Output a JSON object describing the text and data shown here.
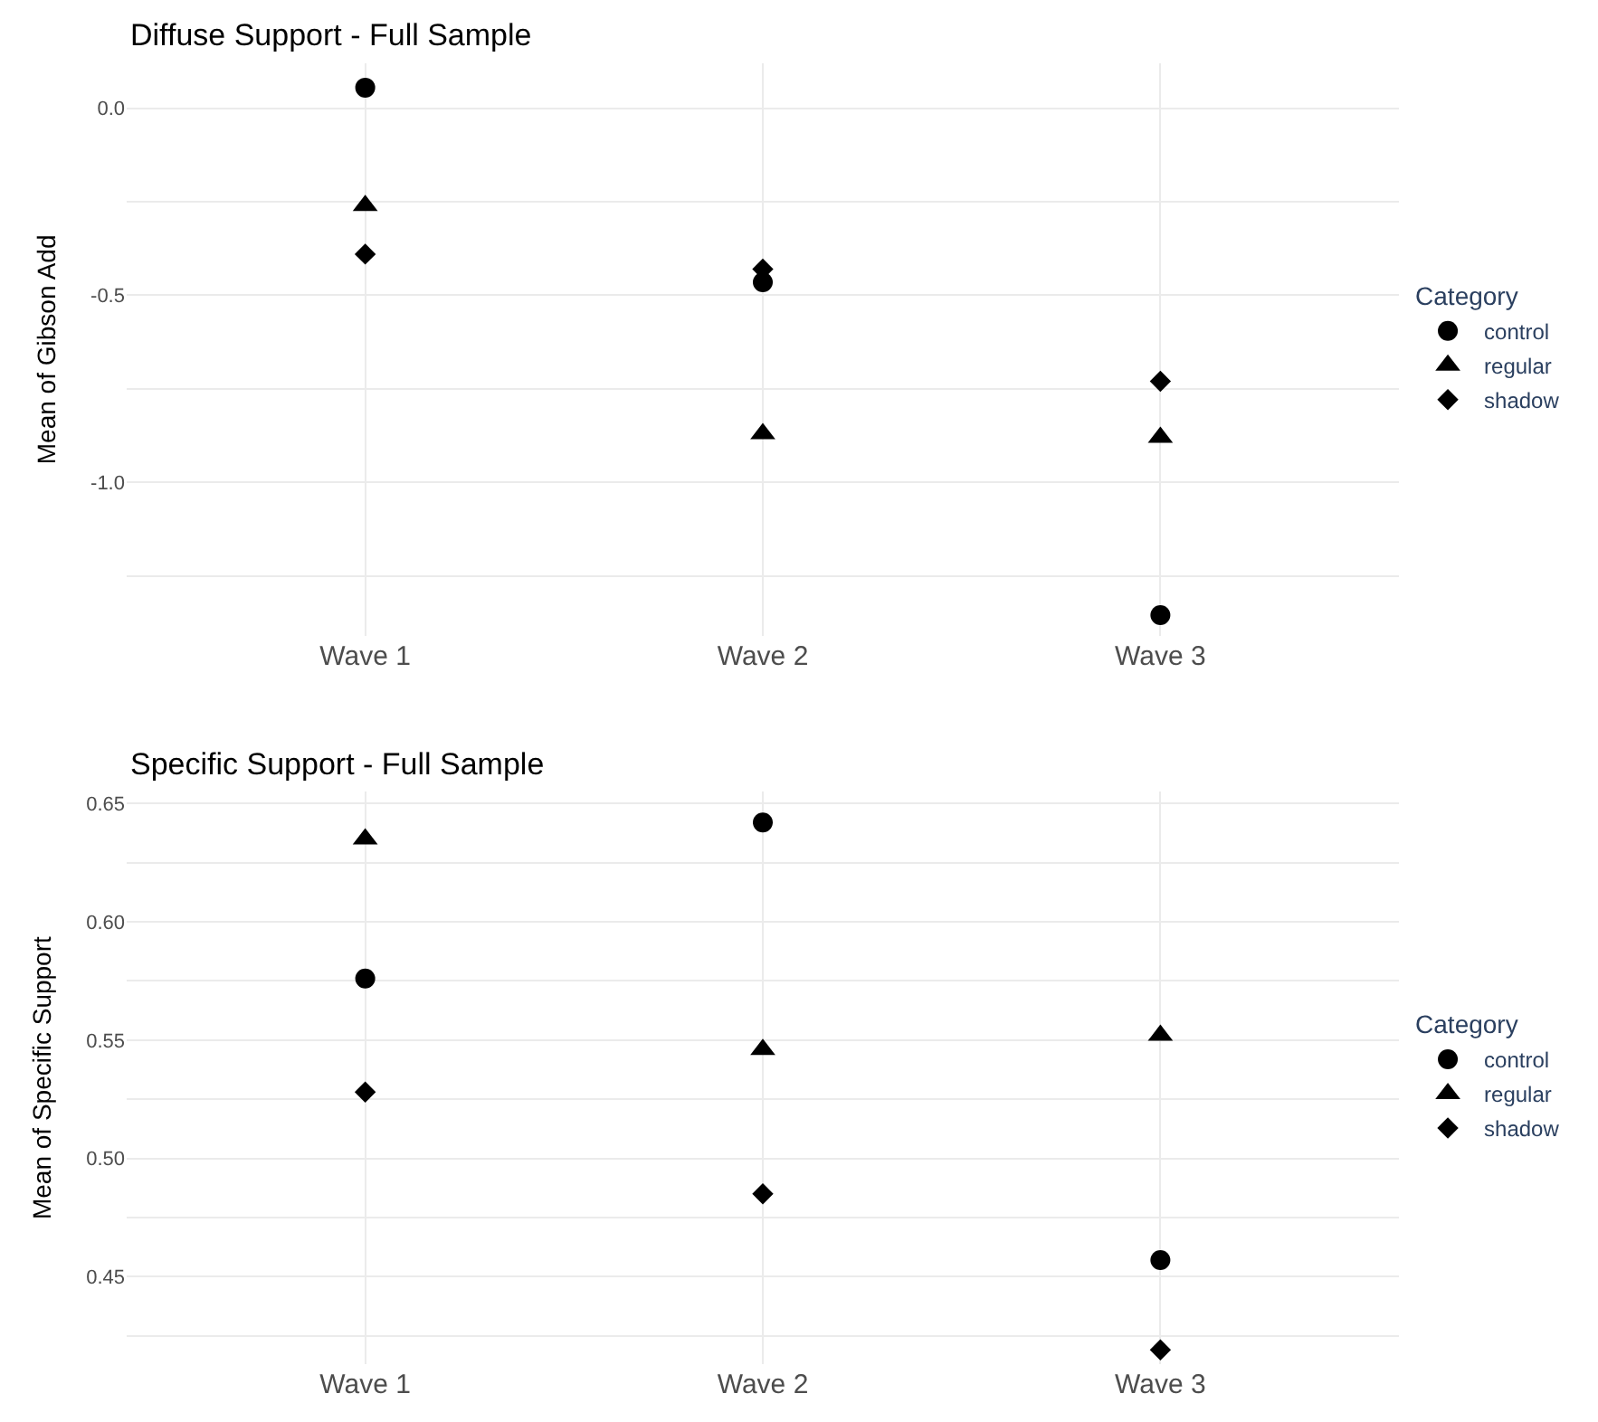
{
  "chart_data": [
    {
      "type": "scatter",
      "title": "Diffuse Support - Full Sample",
      "ylabel": "Mean of Gibson Add",
      "legend_title": "Category",
      "legend": "right",
      "grid": true,
      "categories": [
        "Wave 1",
        "Wave 2",
        "Wave 3"
      ],
      "ylim": [
        -1.41,
        0.12
      ],
      "yticks": [
        {
          "value": -1.25,
          "label": null
        },
        {
          "value": -1.0,
          "label": "-1.0"
        },
        {
          "value": -0.75,
          "label": null
        },
        {
          "value": -0.5,
          "label": "-0.5"
        },
        {
          "value": -0.25,
          "label": null
        },
        {
          "value": 0.0,
          "label": "0.0"
        }
      ],
      "series": [
        {
          "name": "control",
          "color": "#000000",
          "marker": "circle",
          "values": [
            0.055,
            -0.465,
            -1.355
          ]
        },
        {
          "name": "regular",
          "color": "#000000",
          "marker": "triangle",
          "values": [
            -0.26,
            -0.87,
            -0.88
          ]
        },
        {
          "name": "shadow",
          "color": "#000000",
          "marker": "diamond",
          "values": [
            -0.39,
            -0.43,
            -0.73
          ]
        }
      ]
    },
    {
      "type": "scatter",
      "title": "Specific Support - Full Sample",
      "ylabel": "Mean of Specific Support",
      "legend_title": "Category",
      "legend": "right",
      "grid": true,
      "categories": [
        "Wave 1",
        "Wave 2",
        "Wave 3"
      ],
      "ylim": [
        0.413,
        0.655
      ],
      "yticks": [
        {
          "value": 0.425,
          "label": null
        },
        {
          "value": 0.45,
          "label": "0.45"
        },
        {
          "value": 0.475,
          "label": null
        },
        {
          "value": 0.5,
          "label": "0.50"
        },
        {
          "value": 0.525,
          "label": null
        },
        {
          "value": 0.55,
          "label": "0.55"
        },
        {
          "value": 0.575,
          "label": null
        },
        {
          "value": 0.6,
          "label": "0.60"
        },
        {
          "value": 0.625,
          "label": null
        },
        {
          "value": 0.65,
          "label": "0.65"
        }
      ],
      "series": [
        {
          "name": "control",
          "color": "#000000",
          "marker": "circle",
          "values": [
            0.576,
            0.642,
            0.457
          ]
        },
        {
          "name": "regular",
          "color": "#000000",
          "marker": "triangle",
          "values": [
            0.635,
            0.546,
            0.552
          ]
        },
        {
          "name": "shadow",
          "color": "#000000",
          "marker": "diamond",
          "values": [
            0.528,
            0.485,
            0.419
          ]
        }
      ]
    }
  ]
}
